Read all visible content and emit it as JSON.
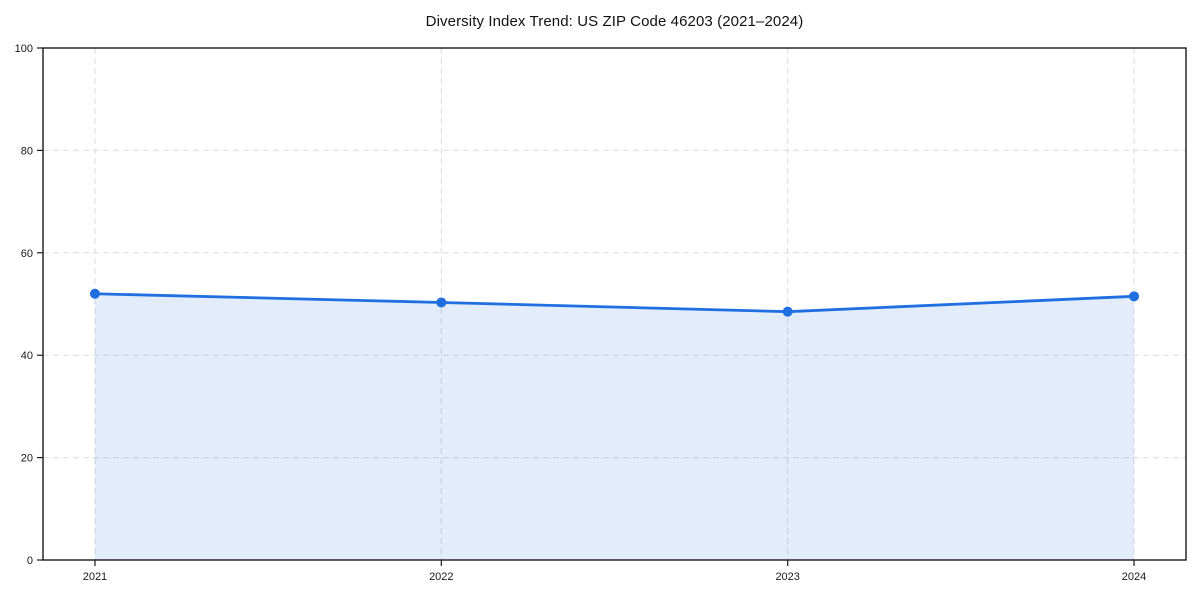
{
  "chart_data": {
    "type": "line",
    "title": "Diversity Index Trend: US ZIP Code 46203 (2021–2024)",
    "categories": [
      "2021",
      "2022",
      "2023",
      "2024"
    ],
    "series": [
      {
        "name": "Diversity Index",
        "values": [
          52.0,
          50.3,
          48.5,
          51.5
        ]
      }
    ],
    "xlabel": "",
    "ylabel": "",
    "ylim": [
      0,
      100
    ],
    "yticks": [
      0,
      20,
      40,
      60,
      80,
      100
    ],
    "grid": true,
    "grid_style": "dashed",
    "legend_position": "none",
    "colors": {
      "line": "#1f6fe0",
      "marker": "#1f6fe0",
      "area_fill": "rgba(31,111,224,0.13)",
      "grid": "#dcdcdc",
      "axis": "#1a1a1a",
      "tick_label": "#1a1a1a",
      "background": "#ffffff"
    }
  }
}
